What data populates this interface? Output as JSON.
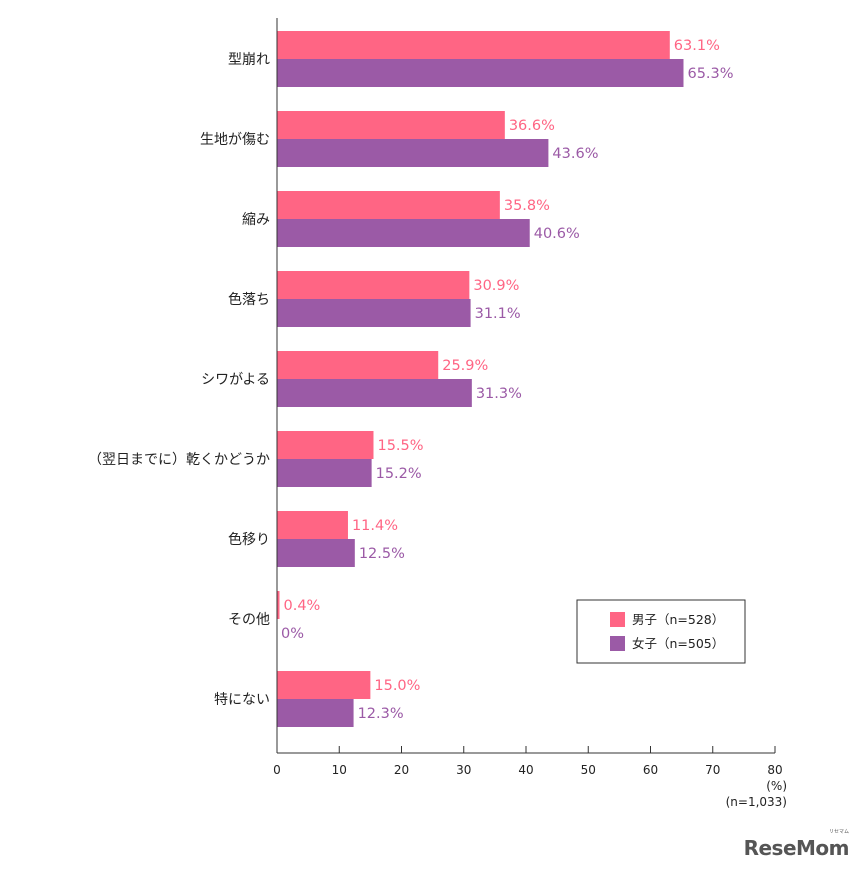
{
  "chart_data": {
    "type": "bar",
    "orientation": "horizontal",
    "categories": [
      "型崩れ",
      "生地が傷む",
      "縮み",
      "色落ち",
      "シワがよる",
      "（翌日までに）乾くかどうか",
      "色移り",
      "その他",
      "特にない"
    ],
    "series": [
      {
        "name": "男子（n=528）",
        "color": "#ff6584",
        "values": [
          63.1,
          36.6,
          35.8,
          30.9,
          25.9,
          15.5,
          11.4,
          0.4,
          15.0
        ],
        "labels": [
          "63.1%",
          "36.6%",
          "35.8%",
          "30.9%",
          "25.9%",
          "15.5%",
          "11.4%",
          "0.4%",
          "15.0%"
        ]
      },
      {
        "name": "女子（n=505）",
        "color": "#9b5aa6",
        "values": [
          65.3,
          43.6,
          40.6,
          31.1,
          31.3,
          15.2,
          12.5,
          0,
          12.3
        ],
        "labels": [
          "65.3%",
          "43.6%",
          "40.6%",
          "31.1%",
          "31.3%",
          "15.2%",
          "12.5%",
          "0%",
          "12.3%"
        ]
      }
    ],
    "xlim": [
      0,
      80
    ],
    "xticks": [
      "0",
      "10",
      "20",
      "30",
      "40",
      "50",
      "60",
      "70",
      "80"
    ],
    "unit_label": "(%)",
    "sample_note": "(n=1,033)",
    "legend_position": "bottom-right",
    "grid": false
  },
  "watermark": {
    "text": "ReseMom",
    "small_text": "リセマム"
  }
}
